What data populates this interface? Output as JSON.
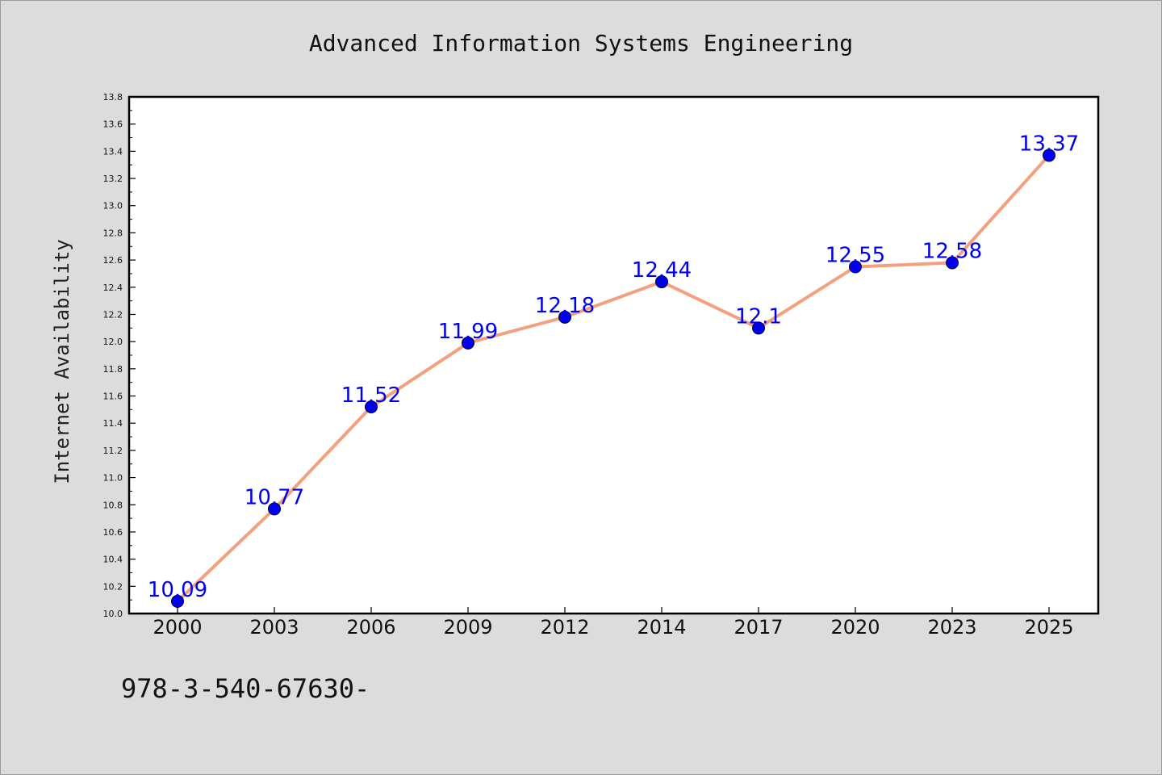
{
  "chart_data": {
    "type": "line",
    "title": "Advanced Information Systems Engineering",
    "xlabel": "",
    "ylabel": "Internet Availability",
    "categories": [
      "2000",
      "2003",
      "2006",
      "2009",
      "2012",
      "2014",
      "2017",
      "2020",
      "2023",
      "2025"
    ],
    "values": [
      10.09,
      10.77,
      11.52,
      11.99,
      12.18,
      12.44,
      12.1,
      12.55,
      12.58,
      13.37
    ],
    "data_labels": [
      "10.09",
      "10.77",
      "11.52",
      "11.99",
      "12.18",
      "12.44",
      "12.1",
      "12.55",
      "12.58",
      "13.37"
    ],
    "ylim": [
      10.0,
      13.8
    ],
    "y_ticks": [
      "10.0",
      "10.2",
      "10.4",
      "10.6",
      "10.8",
      "11.0",
      "11.2",
      "11.4",
      "11.6",
      "11.8",
      "12.0",
      "12.2",
      "12.4",
      "12.6",
      "12.8",
      "13.0",
      "13.2",
      "13.4",
      "13.6",
      "13.8"
    ],
    "grid": false,
    "line_color": "#f4a07e",
    "marker_color": "#0000ee",
    "label_color": "#0000ee",
    "background_color": "#dcdcdc",
    "plot_background": "#ffffff"
  },
  "footer_text": "978-3-540-67630-"
}
